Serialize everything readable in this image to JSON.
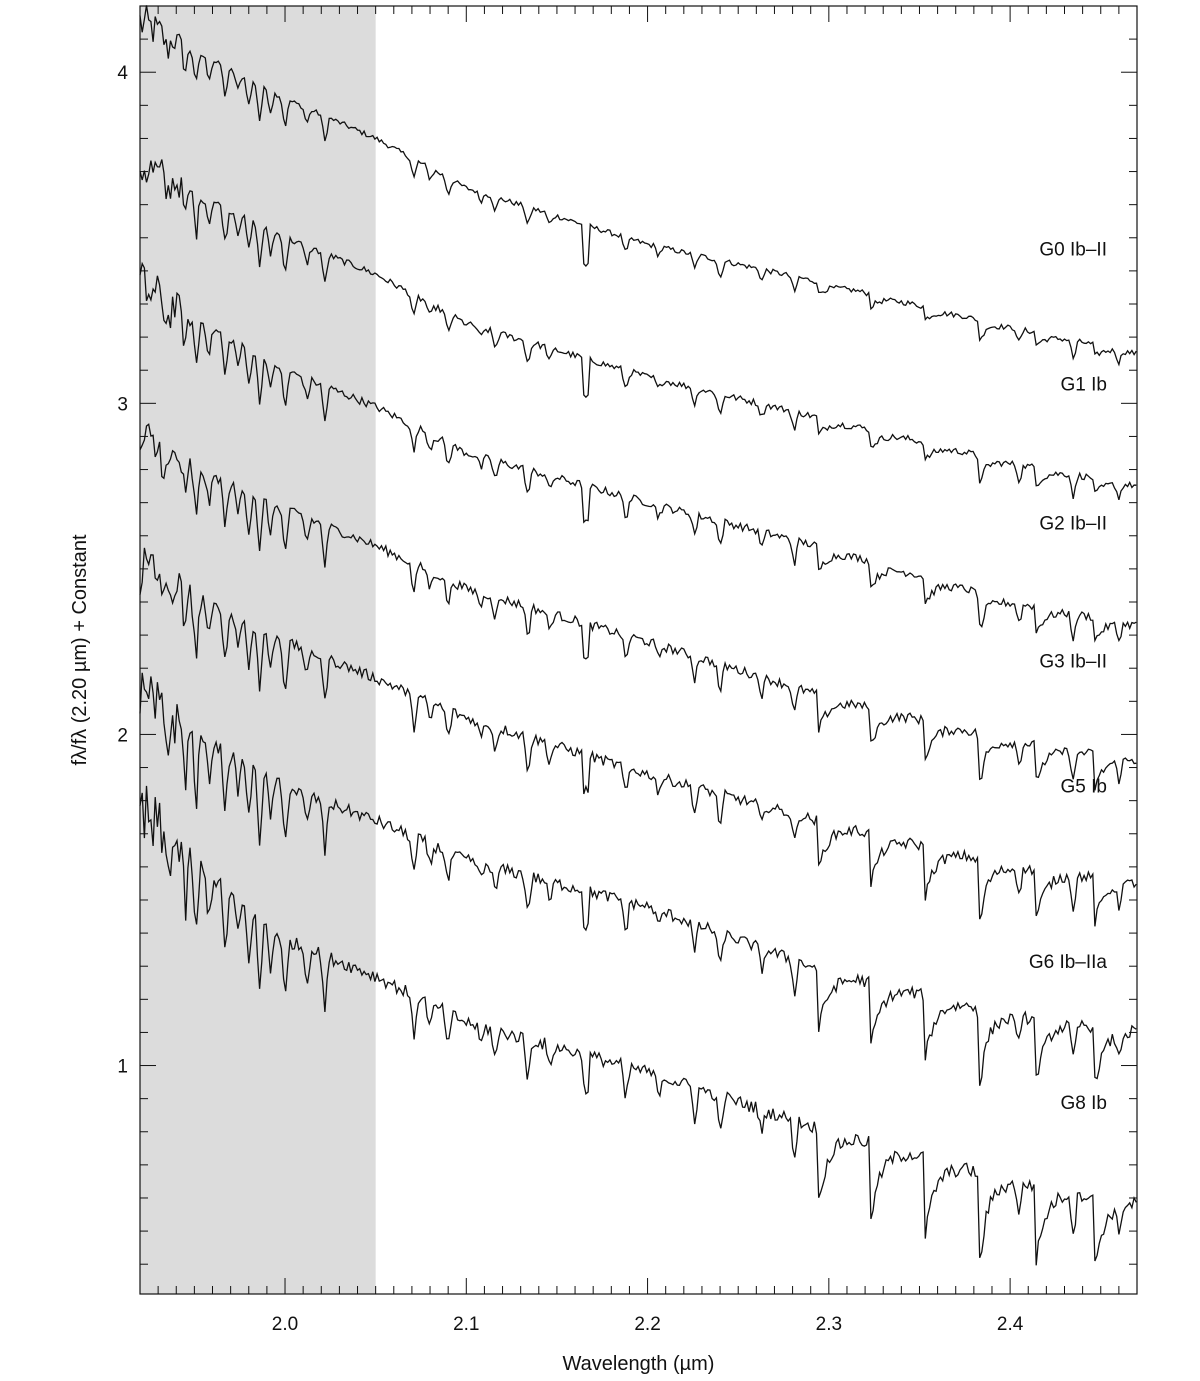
{
  "chart_data": {
    "type": "line",
    "title": "",
    "xlabel": "Wavelength (µm)",
    "ylabel": "fλ/fλ (2.20 µm) + Constant",
    "xlim": [
      1.92,
      2.47
    ],
    "ylim": [
      0.31,
      4.2
    ],
    "x_ticks": [
      "2.0",
      "2.1",
      "2.2",
      "2.3",
      "2.4"
    ],
    "y_ticks": [
      "1",
      "2",
      "3",
      "4"
    ],
    "shaded_region": [
      1.92,
      2.05
    ],
    "shaded_color": "#dcdcdc",
    "line_color": "#111111",
    "grid": false,
    "legend": "none",
    "series": [
      {
        "name": "G0 Ib–II",
        "values_at_x": [
          [
            1.92,
            4.15
          ],
          [
            2.0,
            3.92
          ],
          [
            2.05,
            3.8
          ],
          [
            2.1,
            3.65
          ],
          [
            2.2,
            3.48
          ],
          [
            2.3,
            3.36
          ],
          [
            2.4,
            3.23
          ],
          [
            2.47,
            3.15
          ]
        ]
      },
      {
        "name": "G1 Ib",
        "values_at_x": [
          [
            1.92,
            3.72
          ],
          [
            2.0,
            3.5
          ],
          [
            2.05,
            3.39
          ],
          [
            2.1,
            3.24
          ],
          [
            2.2,
            3.08
          ],
          [
            2.3,
            2.95
          ],
          [
            2.4,
            2.82
          ],
          [
            2.47,
            2.75
          ]
        ]
      },
      {
        "name": "G2 Ib–II",
        "values_at_x": [
          [
            1.92,
            3.35
          ],
          [
            2.0,
            3.1
          ],
          [
            2.05,
            2.99
          ],
          [
            2.1,
            2.85
          ],
          [
            2.2,
            2.7
          ],
          [
            2.3,
            2.56
          ],
          [
            2.4,
            2.4
          ],
          [
            2.47,
            2.33
          ]
        ]
      },
      {
        "name": "G3 Ib–II",
        "values_at_x": [
          [
            1.92,
            2.88
          ],
          [
            2.0,
            2.68
          ],
          [
            2.05,
            2.57
          ],
          [
            2.1,
            2.44
          ],
          [
            2.2,
            2.28
          ],
          [
            2.3,
            2.11
          ],
          [
            2.4,
            1.98
          ],
          [
            2.47,
            1.92
          ]
        ]
      },
      {
        "name": "G5 Ib",
        "values_at_x": [
          [
            1.92,
            2.5
          ],
          [
            2.0,
            2.28
          ],
          [
            2.05,
            2.17
          ],
          [
            2.1,
            2.05
          ],
          [
            2.2,
            1.88
          ],
          [
            2.3,
            1.73
          ],
          [
            2.4,
            1.6
          ],
          [
            2.47,
            1.55
          ]
        ]
      },
      {
        "name": "G6 Ib–IIa",
        "values_at_x": [
          [
            1.92,
            2.1
          ],
          [
            2.0,
            1.84
          ],
          [
            2.05,
            1.74
          ],
          [
            2.1,
            1.62
          ],
          [
            2.2,
            1.48
          ],
          [
            2.3,
            1.28
          ],
          [
            2.4,
            1.15
          ],
          [
            2.47,
            1.1
          ]
        ]
      },
      {
        "name": "G8 Ib",
        "values_at_x": [
          [
            1.92,
            1.75
          ],
          [
            2.0,
            1.38
          ],
          [
            2.05,
            1.27
          ],
          [
            2.1,
            1.13
          ],
          [
            2.2,
            0.98
          ],
          [
            2.3,
            0.8
          ],
          [
            2.4,
            0.65
          ],
          [
            2.47,
            0.58
          ]
        ]
      }
    ]
  }
}
